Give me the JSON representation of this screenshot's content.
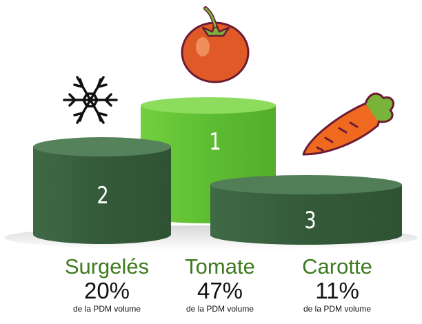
{
  "colors": {
    "accent_green": "#3e7a1f",
    "dark_podium": "#3a6240",
    "light_podium": "#6cc93b",
    "tomato_red": "#e05a27",
    "carrot_orange": "#ef6a1f",
    "leaf_green": "#7ab33a",
    "outline": "#6b1b33"
  },
  "icons": {
    "tomato": "tomato-icon",
    "snowflake": "snowflake-icon",
    "carrot": "carrot-icon"
  },
  "podium": {
    "first": {
      "rank": "1",
      "name": "Tomate",
      "percent": "47%",
      "sub": "de la PDM volume"
    },
    "second": {
      "rank": "2",
      "name": "Surgelés",
      "percent": "20%",
      "sub": "de la PDM volume"
    },
    "third": {
      "rank": "3",
      "name": "Carotte",
      "percent": "11%",
      "sub": "de la PDM volume"
    }
  }
}
